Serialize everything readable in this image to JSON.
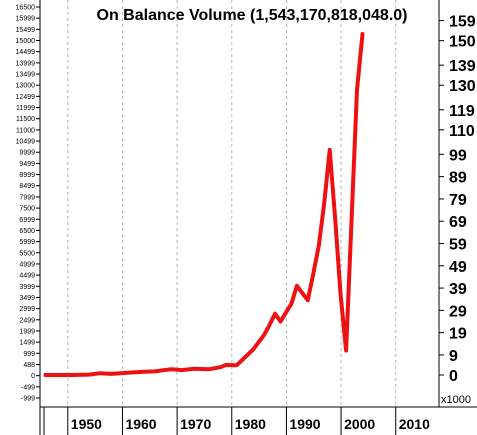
{
  "chart_data": {
    "type": "line",
    "title": "On Balance Volume (1,543,170,818,048.0)",
    "y_multiplier_label": "x1000",
    "x_tick_labels": [
      "1950",
      "1960",
      "1970",
      "1980",
      "1990",
      "2000",
      "2010"
    ],
    "x_ticks": [
      1950,
      1960,
      1970,
      1980,
      1990,
      2000,
      2010
    ],
    "xlim": [
      1944,
      2017
    ],
    "left_axis": {
      "ylim": [
        -1000,
        16500
      ],
      "tick_labels": [
        "16500",
        "15999",
        "15499",
        "15000",
        "14499",
        "13999",
        "13499",
        "13000",
        "12499",
        "11999",
        "11500",
        "11000",
        "10499",
        "9999",
        "9499",
        "8999",
        "8499",
        "7999",
        "7500",
        "6999",
        "6500",
        "5999",
        "5500",
        "4999",
        "4499",
        "3999",
        "3499",
        "2999",
        "2499",
        "1999",
        "1499",
        "999",
        "488",
        "0",
        "-499",
        "-999"
      ]
    },
    "right_axis": {
      "ylim": [
        -10,
        165
      ],
      "tick_labels": [
        "159",
        "150",
        "139",
        "130",
        "119",
        "110",
        "99",
        "89",
        "79",
        "69",
        "59",
        "49",
        "39",
        "29",
        "19",
        "9",
        "0"
      ],
      "ticks": [
        159,
        150,
        139,
        130,
        119,
        110,
        99,
        89,
        79,
        69,
        59,
        49,
        39,
        29,
        19,
        9,
        0
      ]
    },
    "grid": "vertical",
    "series": [
      {
        "color": "#ee1111",
        "x": [
          1945,
          1950,
          1953,
          1955,
          1957,
          1960,
          1963,
          1965,
          1968,
          1970,
          1972,
          1975,
          1977,
          1978,
          1980,
          1983,
          1985,
          1986,
          1987,
          1988,
          1990,
          1991,
          1993,
          1994,
          1995,
          1996,
          1997,
          1998,
          1999,
          2000,
          2002,
          2003
        ],
        "y": [
          0,
          0,
          0.2,
          0.8,
          0.5,
          1,
          1.5,
          1.6,
          2.6,
          2.2,
          2.8,
          2.6,
          3.5,
          4.5,
          4.4,
          11.5,
          18,
          22.5,
          27.5,
          24,
          32,
          40,
          33.5,
          45.5,
          58,
          77,
          101,
          70,
          36,
          11,
          128,
          153
        ]
      }
    ]
  }
}
